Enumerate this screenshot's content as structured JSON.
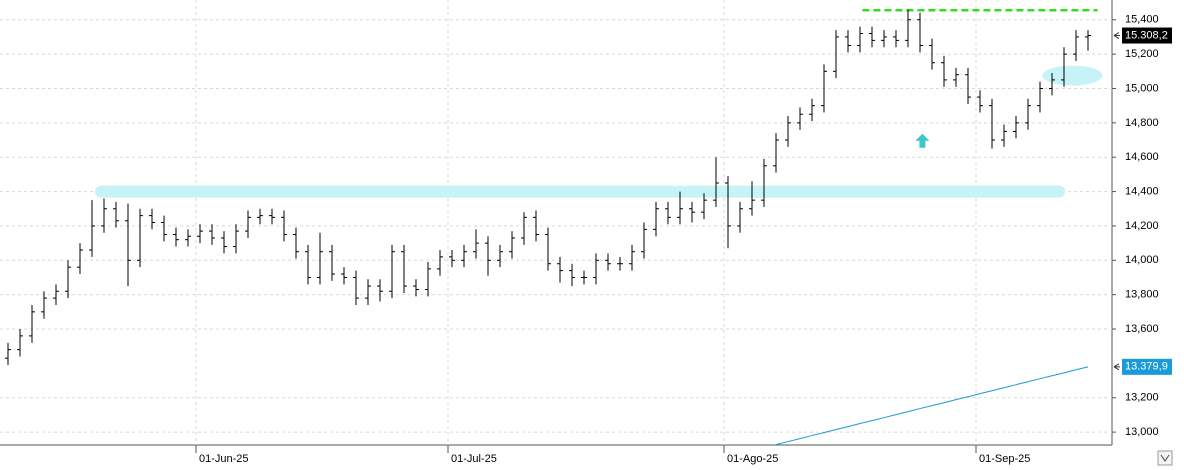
{
  "chart_data": {
    "type": "ohlc",
    "categories": [
      null,
      null,
      null,
      null,
      null,
      null,
      null,
      null,
      null,
      null,
      null,
      null,
      null,
      null,
      null,
      null,
      "01-Jun-25",
      null,
      null,
      null,
      null,
      null,
      null,
      null,
      null,
      null,
      null,
      null,
      null,
      null,
      null,
      null,
      null,
      null,
      null,
      null,
      null,
      "01-Jul-25",
      null,
      null,
      null,
      null,
      null,
      null,
      null,
      null,
      null,
      null,
      null,
      null,
      null,
      null,
      null,
      null,
      null,
      null,
      null,
      null,
      null,
      null,
      "01-Ago-25",
      null,
      null,
      null,
      null,
      null,
      null,
      null,
      null,
      null,
      null,
      null,
      null,
      null,
      null,
      null,
      null,
      null,
      null,
      null,
      null,
      "01-Sep-25",
      null,
      null,
      null,
      null,
      null,
      null,
      null,
      null,
      null
    ],
    "ohlc": {
      "color": "#000000",
      "open": [
        13430,
        13480,
        13560,
        13700,
        13780,
        13820,
        13960,
        14060,
        14200,
        14300,
        14230,
        14000,
        14260,
        14220,
        14150,
        14120,
        14140,
        14170,
        14130,
        14080,
        14170,
        14250,
        14260,
        14250,
        14150,
        14050,
        13900,
        14050,
        13920,
        13900,
        13780,
        13850,
        13820,
        14050,
        13850,
        13830,
        13950,
        14020,
        14000,
        14050,
        14100,
        14000,
        14050,
        14130,
        14250,
        14150,
        13980,
        13940,
        13900,
        13900,
        14000,
        13980,
        13980,
        14050,
        14180,
        14300,
        14250,
        14300,
        14280,
        14350,
        14450,
        14200,
        14300,
        14350,
        14550,
        14700,
        14800,
        14850,
        14900,
        15100,
        15300,
        15250,
        15320,
        15280,
        15300,
        15280,
        15400,
        15250,
        15150,
        15050,
        15080,
        14950,
        14900,
        14700,
        14750,
        14800,
        14900,
        15000,
        15050,
        15200,
        15300
      ],
      "high": [
        13520,
        13600,
        13740,
        13820,
        13860,
        14000,
        14100,
        14350,
        14360,
        14340,
        14330,
        14300,
        14300,
        14260,
        14190,
        14180,
        14210,
        14210,
        14170,
        14210,
        14290,
        14300,
        14300,
        14290,
        14190,
        14090,
        14160,
        14090,
        13960,
        13940,
        13890,
        13890,
        14090,
        14090,
        13890,
        13990,
        14060,
        14060,
        14090,
        14180,
        14140,
        14090,
        14170,
        14280,
        14290,
        14190,
        14020,
        13980,
        13940,
        14040,
        14040,
        14020,
        14090,
        14220,
        14340,
        14340,
        14400,
        14340,
        14390,
        14600,
        14490,
        14340,
        14460,
        14590,
        14740,
        14840,
        14890,
        14940,
        15140,
        15340,
        15340,
        15360,
        15360,
        15340,
        15340,
        15460,
        15440,
        15290,
        15190,
        15120,
        15120,
        14990,
        14940,
        14790,
        14840,
        14940,
        15040,
        15090,
        15240,
        15340,
        15340
      ],
      "low": [
        13390,
        13440,
        13520,
        13660,
        13740,
        13780,
        13920,
        14020,
        14160,
        14190,
        13850,
        13960,
        14180,
        14110,
        14080,
        14080,
        14100,
        14090,
        14040,
        14040,
        14130,
        14210,
        14210,
        14110,
        14010,
        13860,
        13860,
        13880,
        13860,
        13740,
        13740,
        13760,
        13780,
        13810,
        13790,
        13790,
        13910,
        13960,
        13960,
        14010,
        13910,
        13960,
        14010,
        14090,
        14110,
        13940,
        13870,
        13850,
        13860,
        13860,
        13940,
        13940,
        13940,
        14010,
        14140,
        14210,
        14210,
        14220,
        14240,
        14310,
        14070,
        14160,
        14260,
        14310,
        14510,
        14660,
        14760,
        14810,
        14860,
        15060,
        15210,
        15210,
        15240,
        15240,
        15240,
        15240,
        15210,
        15110,
        15010,
        15010,
        14910,
        14860,
        14650,
        14660,
        14710,
        14760,
        14860,
        14960,
        15010,
        15160,
        15220
      ],
      "close": [
        13480,
        13560,
        13700,
        13780,
        13820,
        13960,
        14060,
        14200,
        14300,
        14230,
        14000,
        14260,
        14220,
        14150,
        14120,
        14140,
        14170,
        14130,
        14080,
        14170,
        14250,
        14260,
        14250,
        14150,
        14050,
        13900,
        14050,
        13920,
        13900,
        13780,
        13850,
        13820,
        14050,
        13850,
        13830,
        13950,
        14020,
        14000,
        14050,
        14100,
        14000,
        14050,
        14130,
        14250,
        14150,
        13980,
        13940,
        13900,
        13900,
        14000,
        13980,
        13980,
        14050,
        14180,
        14300,
        14250,
        14300,
        14280,
        14350,
        14450,
        14200,
        14300,
        14350,
        14550,
        14700,
        14800,
        14850,
        14900,
        15100,
        15300,
        15250,
        15320,
        15280,
        15300,
        15280,
        15400,
        15250,
        15150,
        15050,
        15080,
        14950,
        14900,
        14700,
        14750,
        14800,
        14900,
        15000,
        15050,
        15200,
        15300,
        15308.2
      ],
      "last_label": "15.308,2"
    },
    "series": [
      {
        "color": "#1a9bd7",
        "last_label": "13.379,9",
        "values": [
          null,
          null,
          null,
          null,
          null,
          null,
          null,
          null,
          null,
          null,
          null,
          null,
          null,
          null,
          null,
          null,
          null,
          null,
          null,
          null,
          null,
          null,
          null,
          null,
          null,
          null,
          null,
          null,
          null,
          null,
          null,
          null,
          null,
          null,
          null,
          null,
          null,
          null,
          null,
          null,
          null,
          null,
          null,
          null,
          null,
          null,
          null,
          null,
          null,
          null,
          null,
          null,
          null,
          null,
          null,
          null,
          null,
          null,
          null,
          null,
          null,
          null,
          null,
          12910,
          12927,
          12945,
          12962,
          12980,
          12997,
          13015,
          13032,
          13050,
          13067,
          13084,
          13102,
          13119,
          13137,
          13154,
          13171,
          13189,
          13206,
          13224,
          13241,
          13258,
          13276,
          13293,
          13311,
          13328,
          13345,
          13363,
          13379.9
        ]
      }
    ],
    "annotations": [
      {
        "type": "band",
        "value": 14400,
        "start": 7.25,
        "end": 88.1,
        "color": "#c6f3f7"
      },
      {
        "type": "hline",
        "value": 15455,
        "start": 71.2,
        "end": 90.8,
        "color": "#33dd22"
      },
      {
        "type": "ellipse",
        "value": 15075,
        "at": 88.7,
        "color": "#c6f3f7"
      },
      {
        "type": "arrow",
        "value": 14690,
        "at": 76.2,
        "color": "#3cc6c6"
      }
    ],
    "ylim": [
      12925,
      15515
    ],
    "yticks": [
      {
        "value": 13000,
        "label": "13,000"
      },
      {
        "value": 13200,
        "label": "13,200"
      },
      {
        "value": 13600,
        "label": "13,600"
      },
      {
        "value": 13800,
        "label": "13,800"
      },
      {
        "value": 14000,
        "label": "14,000"
      },
      {
        "value": 14200,
        "label": "14,200"
      },
      {
        "value": 14400,
        "label": "14,400"
      },
      {
        "value": 14600,
        "label": "14,600"
      },
      {
        "value": 14800,
        "label": "14,800"
      },
      {
        "value": 15000,
        "label": "15,000"
      },
      {
        "value": 15200,
        "label": "15,200"
      },
      {
        "value": 15400,
        "label": "15,400"
      }
    ],
    "grid": true
  }
}
